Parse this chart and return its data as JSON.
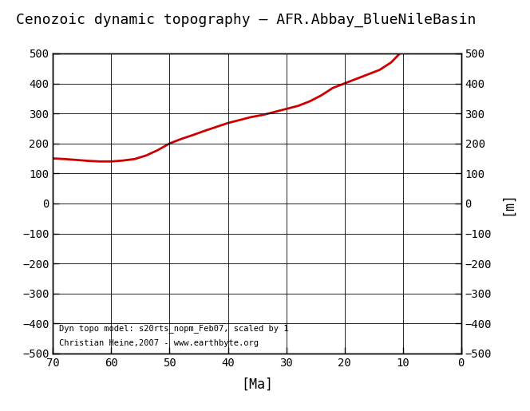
{
  "title": "Cenozoic dynamic topography – AFR.Abbay_BlueNileBasin",
  "xlabel": "[Ma]",
  "ylabel_right": "[m]",
  "xlim": [
    70,
    0
  ],
  "ylim": [
    -500,
    500
  ],
  "xticks": [
    70,
    60,
    50,
    40,
    30,
    20,
    10,
    0
  ],
  "yticks": [
    -500,
    -400,
    -300,
    -200,
    -100,
    0,
    100,
    200,
    300,
    400,
    500
  ],
  "line_color": "#cc0000",
  "line_width": 2.0,
  "annotation_line1": "Dyn topo model: s20rts_nopm_Feb07, scaled by 1",
  "annotation_line2": "Christian Heine,2007 - www.earthbyte.org",
  "annotation_fontsize": 7.5,
  "x_data": [
    70,
    68,
    66,
    64,
    62,
    60,
    58,
    56,
    54,
    52,
    50,
    48,
    46,
    44,
    42,
    40,
    38,
    36,
    34,
    32,
    30,
    28,
    26,
    24,
    22,
    20,
    18,
    16,
    14,
    12,
    10
  ],
  "y_data": [
    150,
    148,
    145,
    142,
    140,
    140,
    143,
    148,
    160,
    178,
    200,
    215,
    228,
    242,
    255,
    268,
    278,
    288,
    295,
    305,
    315,
    325,
    340,
    360,
    385,
    400,
    415,
    430,
    445,
    470,
    510
  ],
  "bg_color": "#ffffff",
  "title_fontsize": 13,
  "tick_fontsize": 10,
  "xlabel_fontsize": 12,
  "ylabel_fontsize": 12
}
